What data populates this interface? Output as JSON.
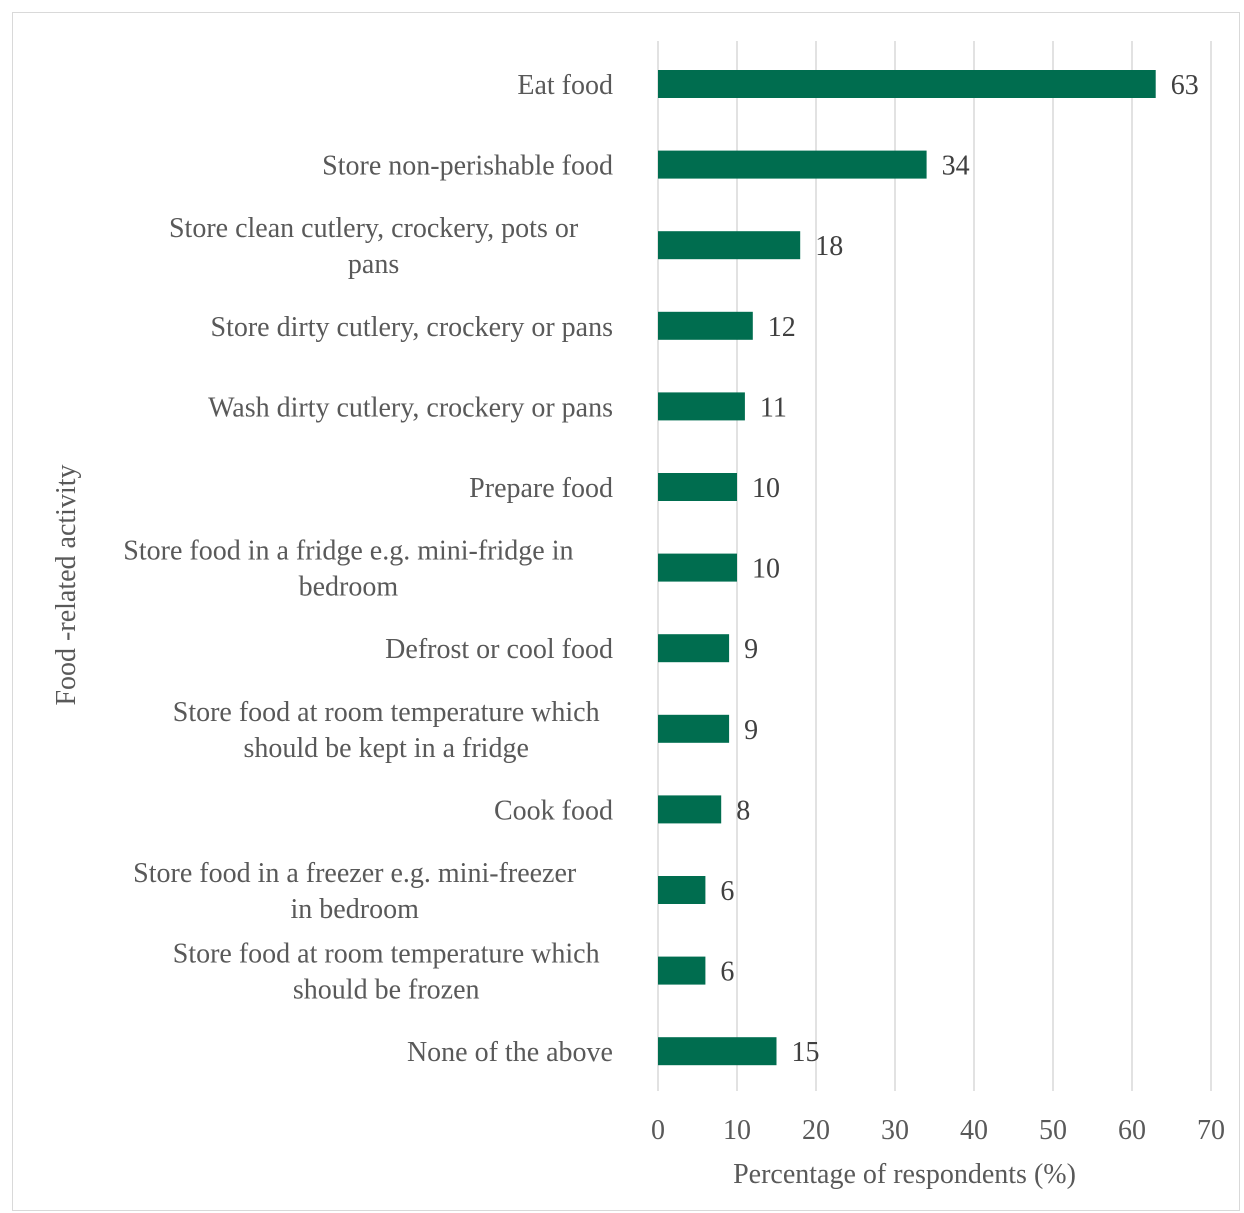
{
  "chart_data": {
    "type": "bar",
    "orientation": "horizontal",
    "title": "",
    "xlabel": "Percentage of respondents (%)",
    "ylabel": "Food -related activity",
    "xlim": [
      0,
      70
    ],
    "xticks": [
      "0",
      "10",
      "20",
      "30",
      "40",
      "50",
      "60",
      "70"
    ],
    "grid": true,
    "legend": "none",
    "bar_color": "#006d4f",
    "categories": [
      [
        "Eat food"
      ],
      [
        "Store non-perishable food"
      ],
      [
        "Store clean cutlery, crockery, pots or",
        "pans"
      ],
      [
        "Store dirty cutlery, crockery or pans"
      ],
      [
        "Wash dirty cutlery, crockery or pans"
      ],
      [
        "Prepare food"
      ],
      [
        "Store food in a fridge e.g. mini-fridge in",
        "bedroom"
      ],
      [
        "Defrost or cool food"
      ],
      [
        "Store food at room temperature which",
        "should be kept in a fridge"
      ],
      [
        "Cook food"
      ],
      [
        "Store food in a freezer e.g. mini-freezer",
        "in bedroom"
      ],
      [
        "Store food at room temperature which",
        "should be frozen"
      ],
      [
        "None of the above"
      ]
    ],
    "values": [
      63,
      34,
      18,
      12,
      11,
      10,
      10,
      9,
      9,
      8,
      6,
      6,
      15
    ],
    "data_labels": [
      "63",
      "34",
      "18",
      "12",
      "11",
      "10",
      "10",
      "9",
      "9",
      "8",
      "6",
      "6",
      "15"
    ]
  }
}
